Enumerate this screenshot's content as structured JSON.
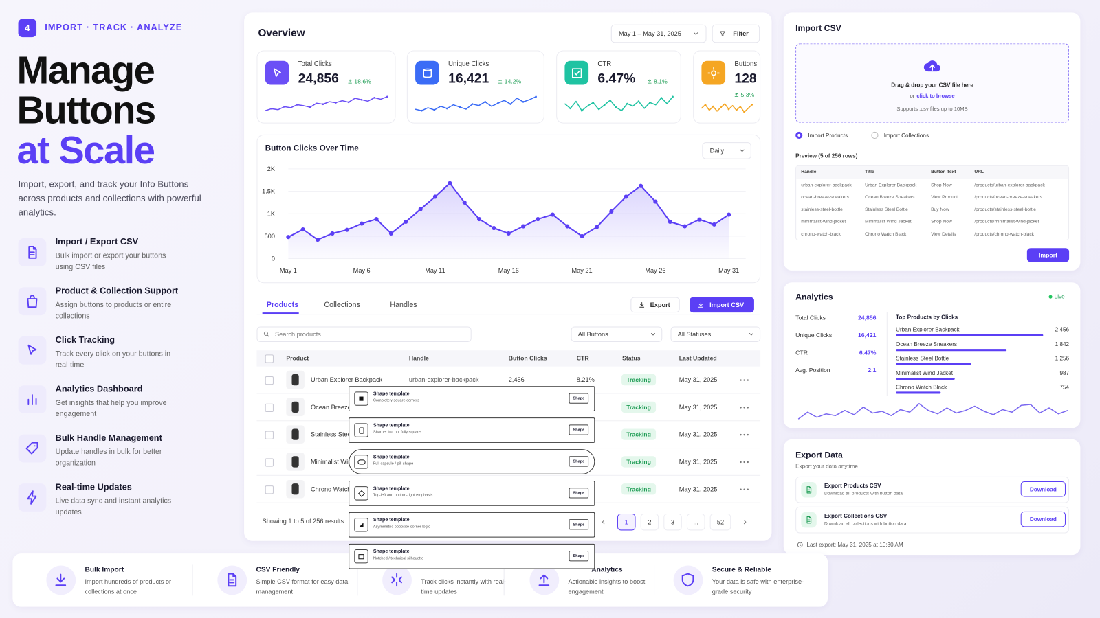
{
  "hero": {
    "badge": "4",
    "tagline": "IMPORT · TRACK · ANALYZE",
    "title": [
      "Manage",
      "Buttons",
      "at Scale"
    ],
    "description": "Import, export, and track your Info Buttons across products and collections with powerful analytics."
  },
  "features": [
    {
      "title": "Import / Export CSV",
      "description": "Bulk import or export your buttons using CSV files"
    },
    {
      "title": "Product & Collection Support",
      "description": "Assign buttons to products or entire collections"
    },
    {
      "title": "Click Tracking",
      "description": "Track every click on your buttons in real-time"
    },
    {
      "title": "Analytics Dashboard",
      "description": "Get insights that help you improve engagement"
    },
    {
      "title": "Bulk Handle Management",
      "description": "Update handles in bulk for better organization"
    },
    {
      "title": "Real-time Updates",
      "description": "Live data sync and instant analytics updates"
    }
  ],
  "overview": {
    "title": "Overview",
    "date_range": "May 1 – May 31, 2025",
    "filter": "Filter",
    "kpis": [
      {
        "label": "Total Clicks",
        "value": "24,856",
        "change": "18.6%",
        "trend": [
          30,
          34,
          32,
          38,
          36,
          42,
          40,
          37,
          45,
          43,
          48,
          46,
          50,
          47,
          55,
          52,
          49,
          56,
          53,
          58
        ]
      },
      {
        "label": "Unique Clicks",
        "value": "16,421",
        "change": "14.2%",
        "trend": [
          40,
          38,
          42,
          39,
          44,
          41,
          46,
          43,
          40,
          47,
          45,
          50,
          44,
          48,
          52,
          47,
          55,
          50,
          53,
          57
        ]
      },
      {
        "label": "CTR",
        "value": "6.47%",
        "change": "8.1%",
        "trend": [
          50,
          46,
          52,
          44,
          48,
          51,
          45,
          49,
          53,
          47,
          44,
          50,
          48,
          52,
          46,
          51,
          49,
          55,
          50,
          56
        ]
      },
      {
        "label": "Buttons",
        "value": "128",
        "change": "5.3%",
        "trend": [
          48,
          52,
          46,
          50,
          45,
          49,
          53,
          47,
          51,
          46,
          50,
          44,
          48,
          52
        ]
      }
    ]
  },
  "chart": {
    "title": "Button Clicks Over Time",
    "period": "Daily",
    "x": [
      "May 1",
      null,
      null,
      null,
      null,
      "May 6",
      null,
      null,
      null,
      null,
      "May 11",
      null,
      null,
      null,
      null,
      "May 16",
      null,
      null,
      null,
      null,
      "May 21",
      null,
      null,
      null,
      null,
      "May 26",
      null,
      null,
      null,
      null,
      "May 31"
    ],
    "values": [
      480,
      650,
      420,
      560,
      640,
      780,
      880,
      560,
      820,
      1100,
      1380,
      1680,
      1250,
      880,
      680,
      560,
      720,
      880,
      980,
      720,
      500,
      700,
      1050,
      1380,
      1620,
      1270,
      820,
      720,
      870,
      760,
      980
    ],
    "ylim": [
      0,
      2000
    ],
    "yticks": [
      0,
      500,
      {
        "value": 1000,
        "label": "1K"
      },
      {
        "value": 1500,
        "label": "1.5K"
      },
      {
        "value": 2000,
        "label": "2K"
      }
    ]
  },
  "products": {
    "tabs": [
      "Products",
      "Collections",
      "Handles"
    ],
    "export": "Export",
    "import": "Import CSV",
    "search": "Search products...",
    "filters": [
      "All Buttons",
      "All Statuses"
    ],
    "columns": [
      "Product",
      "Handle",
      "Button Clicks",
      "CTR",
      "Status",
      "Last Updated"
    ],
    "rows": [
      {
        "product": "Urban Explorer Backpack",
        "handle": "urban-explorer-backpack",
        "clicks": "2,456",
        "ctr": "8.21%",
        "status": "Tracking",
        "updated": "May 31, 2025"
      },
      {
        "product": "Ocean Breeze Sneakers",
        "status": "Tracking",
        "updated": "May 31, 2025"
      },
      {
        "product": "Stainless Steel Bottle",
        "status": "Tracking",
        "updated": "May 31, 2025"
      },
      {
        "product": "Minimalist Wind Jacket",
        "status": "Tracking",
        "updated": "May 31, 2025"
      },
      {
        "product": "Chrono Watch Black",
        "status": "Tracking",
        "updated": "May 31, 2025"
      }
    ],
    "summary": "Showing 1 to 5 of 256 results",
    "pages": [
      "1",
      "2",
      "3",
      "...",
      "52"
    ]
  },
  "shape_templates": [
    {
      "title": "Shape template",
      "description": "Completely square corners",
      "button": "Shape"
    },
    {
      "title": "Shape template",
      "description": "Sharper but not fully square",
      "button": "Shape"
    },
    {
      "title": "Shape template",
      "description": "Full capsule / pill shape",
      "button": "Shape"
    },
    {
      "title": "Shape template",
      "description": "Top-left and bottom-right emphasis",
      "button": "Shape"
    },
    {
      "title": "Shape template",
      "description": "Asymmetric opposite-corner logic",
      "button": "Shape"
    },
    {
      "title": "Shape template",
      "description": "Notched / technical silhouette",
      "button": "Shape"
    }
  ],
  "import_csv": {
    "title": "Import CSV",
    "drop_text": "Drag & drop your CSV file here",
    "or": "or",
    "browse": "click to browse",
    "supports": "Supports .csv files up to 10MB",
    "options": [
      "Import Products",
      "Import Collections"
    ],
    "preview_label": "Preview (5 of 256 rows)",
    "columns": [
      "Handle",
      "Title",
      "Button Text",
      "URL"
    ],
    "rows": [
      [
        "urban-explorer-backpack",
        "Urban Explorer Backpack",
        "Shop Now",
        "/products/urban-explorer-backpack"
      ],
      [
        "ocean-breeze-sneakers",
        "Ocean Breeze Sneakers",
        "View Product",
        "/products/ocean-breeze-sneakers"
      ],
      [
        "stainless-steel-bottle",
        "Stainless Steel Bottle",
        "Buy Now",
        "/products/stainless-steel-bottle"
      ],
      [
        "minimalist-wind-jacket",
        "Minimalist Wind Jacket",
        "Shop Now",
        "/products/minimalist-wind-jacket"
      ],
      [
        "chrono-watch-black",
        "Chrono Watch Black",
        "View Details",
        "/products/chrono-watch-black"
      ]
    ],
    "button": "Import"
  },
  "analytics": {
    "title": "Analytics",
    "status": "Live",
    "stats": [
      {
        "label": "Total Clicks",
        "value": "24,856"
      },
      {
        "label": "Unique Clicks",
        "value": "16,421"
      },
      {
        "label": "CTR",
        "value": "6.47%"
      },
      {
        "label": "Avg. Position",
        "value": "2.1"
      }
    ],
    "top_products": {
      "title": "Top Products by Clicks",
      "names": [
        "Urban Explorer Backpack",
        "Ocean Breeze Sneakers",
        "Stainless Steel Bottle",
        "Minimalist Wind Jacket",
        "Chrono Watch Black"
      ],
      "values": [
        2456,
        1842,
        1256,
        987,
        754
      ],
      "value_labels": [
        "2,456",
        "1,842",
        "1,256",
        "987",
        "754"
      ]
    },
    "trend": [
      20,
      28,
      22,
      26,
      24,
      30,
      25,
      34,
      27,
      29,
      24,
      31,
      28,
      38,
      30,
      26,
      33,
      27,
      30,
      35,
      29,
      25,
      31,
      28,
      36,
      37,
      27,
      33,
      26,
      30
    ]
  },
  "export_data": {
    "title": "Export Data",
    "subtitle": "Export your data anytime",
    "items": [
      {
        "title": "Export Products CSV",
        "description": "Download all products with button data",
        "button": "Download"
      },
      {
        "title": "Export Collections CSV",
        "description": "Download all collections with button data",
        "button": "Download"
      }
    ],
    "last_export": "Last export: May 31, 2025 at 10:30 AM"
  },
  "benefits": [
    {
      "title": "Bulk Import",
      "description": "Import hundreds of products or collections at once"
    },
    {
      "title": "CSV Friendly",
      "description": "Simple CSV format for easy data management"
    },
    {
      "description": "Track clicks instantly with real-time updates"
    },
    {
      "title": "Analytics",
      "description": "Actionable insights to boost engagement"
    },
    {
      "title": "Secure & Reliable",
      "description": "Your data is safe with enterprise-grade security"
    }
  ]
}
